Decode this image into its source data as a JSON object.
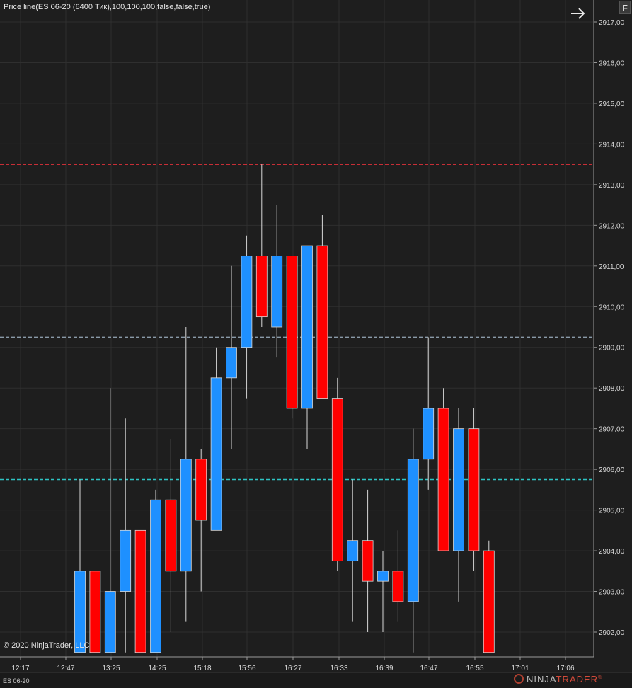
{
  "window": {
    "indicator_label": "Price line(ES 06-20 (6400 Тик),100,100,100,false,false,true)",
    "f_button": "F",
    "arrow_icon": "arrow-right-icon",
    "copyright": "© 2020 NinjaTrader, LLC",
    "instrument": "ES 06-20",
    "logo_main": "NINJA",
    "logo_accent": "TRADER",
    "logo_mark": "®"
  },
  "colors": {
    "background": "#1e1e1e",
    "grid": "#2f2f2f",
    "up": "#1e90ff",
    "down": "#ff0000",
    "wick": "#d8d8d8",
    "line_top": "#e0303a",
    "line_mid": "#8a9aa8",
    "line_low": "#2ec4c4"
  },
  "chart_data": {
    "type": "candlestick",
    "x_ticks": [
      "12:17",
      "12:47",
      "13:25",
      "14:25",
      "15:18",
      "15:56",
      "16:27",
      "16:33",
      "16:39",
      "16:47",
      "16:55",
      "17:01",
      "17:06"
    ],
    "y_ticks": [
      "2917,00",
      "2916,00",
      "2915,00",
      "2914,00",
      "2913,00",
      "2912,00",
      "2911,00",
      "2910,00",
      "2909,00",
      "2908,00",
      "2907,00",
      "2906,00",
      "2905,00",
      "2904,00",
      "2903,00",
      "2902,00"
    ],
    "ylim": [
      2901.5,
      2917.2
    ],
    "price_lines": [
      {
        "value": 2913.5,
        "color_key": "line_top"
      },
      {
        "value": 2909.25,
        "color_key": "line_mid"
      },
      {
        "value": 2905.75,
        "color_key": "line_low"
      }
    ],
    "candles": [
      {
        "open": 2901.5,
        "high": 2905.75,
        "low": 2901.5,
        "close": 2903.5
      },
      {
        "open": 2903.5,
        "high": 2903.5,
        "low": 2901.5,
        "close": 2901.5
      },
      {
        "open": 2901.5,
        "high": 2908.0,
        "low": 2901.5,
        "close": 2903.0
      },
      {
        "open": 2903.0,
        "high": 2907.25,
        "low": 2901.5,
        "close": 2904.5
      },
      {
        "open": 2904.5,
        "high": 2904.5,
        "low": 2901.5,
        "close": 2901.5
      },
      {
        "open": 2901.5,
        "high": 2905.5,
        "low": 2901.5,
        "close": 2905.25
      },
      {
        "open": 2905.25,
        "high": 2906.75,
        "low": 2902.0,
        "close": 2903.5
      },
      {
        "open": 2903.5,
        "high": 2909.5,
        "low": 2902.25,
        "close": 2906.25
      },
      {
        "open": 2906.25,
        "high": 2906.5,
        "low": 2903.0,
        "close": 2904.75
      },
      {
        "open": 2904.5,
        "high": 2909.0,
        "low": 2904.5,
        "close": 2908.25
      },
      {
        "open": 2908.25,
        "high": 2911.0,
        "low": 2906.5,
        "close": 2909.0
      },
      {
        "open": 2909.0,
        "high": 2911.75,
        "low": 2907.75,
        "close": 2911.25
      },
      {
        "open": 2911.25,
        "high": 2913.5,
        "low": 2909.5,
        "close": 2909.75
      },
      {
        "open": 2909.5,
        "high": 2912.5,
        "low": 2908.75,
        "close": 2911.25
      },
      {
        "open": 2911.25,
        "high": 2911.25,
        "low": 2907.25,
        "close": 2907.5
      },
      {
        "open": 2907.5,
        "high": 2911.5,
        "low": 2906.5,
        "close": 2911.5
      },
      {
        "open": 2911.5,
        "high": 2912.25,
        "low": 2907.75,
        "close": 2907.75
      },
      {
        "open": 2907.75,
        "high": 2908.25,
        "low": 2903.5,
        "close": 2903.75
      },
      {
        "open": 2903.75,
        "high": 2905.75,
        "low": 2902.25,
        "close": 2904.25
      },
      {
        "open": 2904.25,
        "high": 2905.5,
        "low": 2902.0,
        "close": 2903.25
      },
      {
        "open": 2903.25,
        "high": 2904.0,
        "low": 2902.0,
        "close": 2903.5
      },
      {
        "open": 2903.5,
        "high": 2904.5,
        "low": 2902.25,
        "close": 2902.75
      },
      {
        "open": 2902.75,
        "high": 2907.0,
        "low": 2901.5,
        "close": 2906.25
      },
      {
        "open": 2906.25,
        "high": 2909.25,
        "low": 2905.5,
        "close": 2907.5
      },
      {
        "open": 2907.5,
        "high": 2908.0,
        "low": 2904.0,
        "close": 2904.0
      },
      {
        "open": 2904.0,
        "high": 2907.5,
        "low": 2902.75,
        "close": 2907.0
      },
      {
        "open": 2907.0,
        "high": 2907.5,
        "low": 2903.5,
        "close": 2904.0
      },
      {
        "open": 2904.0,
        "high": 2904.25,
        "low": 2901.5,
        "close": 2901.5
      }
    ]
  }
}
